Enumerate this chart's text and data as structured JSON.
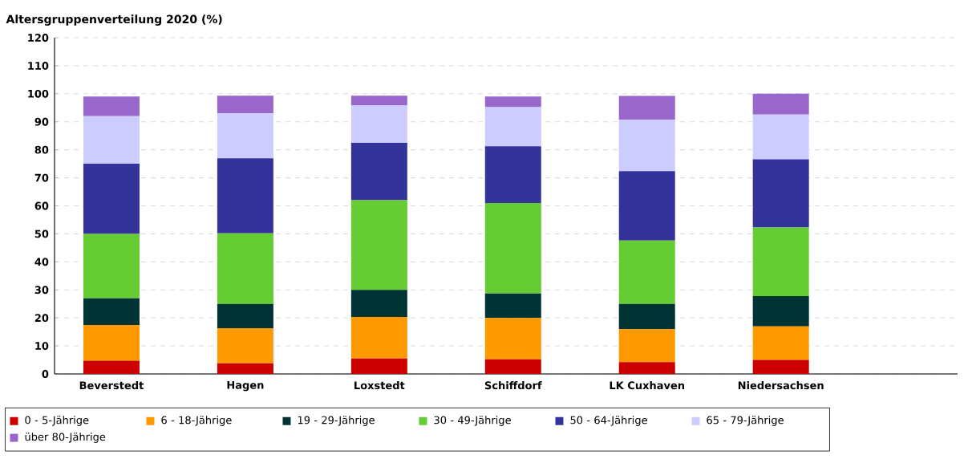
{
  "chart_data": {
    "type": "bar",
    "title": "Altersgruppenverteilung 2020 (%)",
    "stacked": true,
    "categories": [
      "Beverstedt",
      "Hagen",
      "Loxstedt",
      "Schiffdorf",
      "LK Cuxhaven",
      "Niedersachsen"
    ],
    "series": [
      {
        "name": "0 - 5-Jährige",
        "color": "#cc0000",
        "values": [
          4.7,
          3.8,
          5.5,
          5.2,
          4.2,
          5.0
        ]
      },
      {
        "name": "6 - 18-Jährige",
        "color": "#ff9900",
        "values": [
          12.8,
          12.5,
          14.8,
          14.8,
          11.8,
          12.0
        ]
      },
      {
        "name": "19 - 29-Jährige",
        "color": "#003333",
        "values": [
          9.5,
          8.7,
          9.7,
          8.7,
          9.0,
          10.8
        ]
      },
      {
        "name": "30 - 49-Jährige",
        "color": "#66cc33",
        "values": [
          23.0,
          25.2,
          32.0,
          32.3,
          22.6,
          24.5
        ]
      },
      {
        "name": "50 - 64-Jährige",
        "color": "#333399",
        "values": [
          25.0,
          26.8,
          20.5,
          20.3,
          24.8,
          24.3
        ]
      },
      {
        "name": "65 - 79-Jährige",
        "color": "#ccccff",
        "values": [
          17.0,
          16.0,
          13.3,
          13.9,
          18.3,
          16.0
        ]
      },
      {
        "name": "über 80-Jährige",
        "color": "#9966cc",
        "values": [
          7.0,
          6.3,
          3.5,
          3.8,
          8.5,
          7.4
        ]
      }
    ],
    "ylim": [
      0,
      120
    ],
    "yticks": [
      0,
      10,
      20,
      30,
      40,
      50,
      60,
      70,
      80,
      90,
      100,
      110,
      120
    ],
    "grid": "y",
    "legend": "bottom"
  }
}
